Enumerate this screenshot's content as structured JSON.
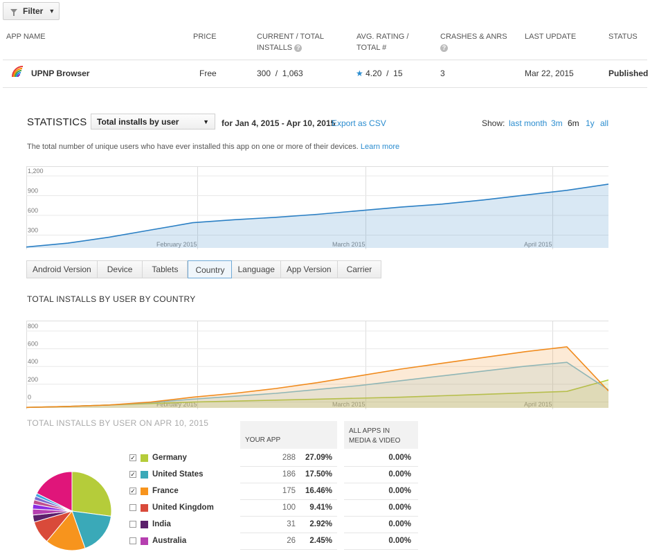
{
  "filter": {
    "label": "Filter"
  },
  "table": {
    "headers": {
      "app_name": "APP NAME",
      "price": "PRICE",
      "installs": [
        "CURRENT / TOTAL",
        "INSTALLS"
      ],
      "rating": [
        "AVG. RATING /",
        "TOTAL #"
      ],
      "crashes": "CRASHES & ANRS",
      "last_update": "LAST UPDATE",
      "status": "STATUS"
    },
    "row": {
      "app_name": "UPNP Browser",
      "price": "Free",
      "current_installs": "300",
      "total_installs": "1,063",
      "rating": "4.20",
      "rating_count": "15",
      "crashes": "3",
      "last_update": "Mar 22, 2015",
      "status": "Published"
    },
    "help_glyph": "?"
  },
  "statistics": {
    "title": "STATISTICS",
    "metric": "Total installs by user",
    "date_range": "for Jan 4, 2015 - Apr 10, 2015",
    "export": "Export as CSV",
    "show_label": "Show:",
    "ranges": [
      "last month",
      "3m",
      "6m",
      "1y",
      "all"
    ],
    "selected_range": "6m",
    "description": "The total number of unique users who have ever installed this app on one or more of their devices.",
    "learn_more": "Learn more"
  },
  "chart_data": [
    {
      "type": "area",
      "y_ticks": [
        "1,200",
        "900",
        "600",
        "300"
      ],
      "x_labels": [
        "February 2015",
        "March 2015",
        "April 2015"
      ],
      "ylim": [
        0,
        1200
      ],
      "series": [
        {
          "values": [
            15,
            80,
            180,
            300,
            420,
            470,
            510,
            560,
            620,
            680,
            730,
            800,
            880,
            960,
            1063
          ]
        }
      ],
      "colors": [
        "#2a7fc4"
      ]
    },
    {
      "type": "line",
      "y_ticks": [
        "800",
        "600",
        "400",
        "200",
        "0"
      ],
      "x_labels": [
        "February 2015",
        "March 2015",
        "April 2015"
      ],
      "ylim": [
        0,
        800
      ],
      "series": [
        {
          "values": [
            5,
            15,
            30,
            45,
            60,
            70,
            80,
            90,
            100,
            110,
            125,
            140,
            155,
            170,
            288
          ]
        },
        {
          "values": [
            5,
            15,
            30,
            55,
            90,
            120,
            150,
            190,
            230,
            280,
            330,
            380,
            430,
            470,
            186
          ]
        },
        {
          "values": [
            5,
            15,
            30,
            60,
            110,
            150,
            200,
            260,
            330,
            400,
            460,
            520,
            580,
            630,
            175
          ]
        }
      ],
      "colors": [
        "#b5cc3a",
        "#7cc0d8",
        "#f08a1c"
      ]
    }
  ],
  "tabs": [
    "Android Version",
    "Device",
    "Tablets",
    "Country",
    "Language",
    "App Version",
    "Carrier"
  ],
  "active_tab": "Country",
  "country_chart_title": "TOTAL INSTALLS BY USER BY COUNTRY",
  "country_table": {
    "title": "TOTAL INSTALLS BY USER ON APR 10, 2015",
    "your_app": "YOUR APP",
    "all_apps": [
      "ALL APPS IN",
      "MEDIA & VIDEO"
    ],
    "rows": [
      {
        "country": "Germany",
        "color": "#b5cc3a",
        "checked": true,
        "count": "288",
        "pct": "27.09%",
        "all": "0.00%"
      },
      {
        "country": "United States",
        "color": "#3aa9b8",
        "checked": true,
        "count": "186",
        "pct": "17.50%",
        "all": "0.00%"
      },
      {
        "country": "France",
        "color": "#f7941d",
        "checked": true,
        "count": "175",
        "pct": "16.46%",
        "all": "0.00%"
      },
      {
        "country": "United Kingdom",
        "color": "#d94a3a",
        "checked": false,
        "count": "100",
        "pct": "9.41%",
        "all": "0.00%"
      },
      {
        "country": "India",
        "color": "#5b1f6b",
        "checked": false,
        "count": "31",
        "pct": "2.92%",
        "all": "0.00%"
      },
      {
        "country": "Australia",
        "color": "#b63fb0",
        "checked": false,
        "count": "26",
        "pct": "2.45%",
        "all": "0.00%"
      }
    ]
  },
  "pie": {
    "values": [
      27.09,
      17.5,
      16.46,
      9.41,
      2.92,
      2.45,
      2.0,
      1.8,
      1.5,
      1.3,
      17.57
    ],
    "colors": [
      "#b5cc3a",
      "#3aa9b8",
      "#f7941d",
      "#d94a3a",
      "#5b1f6b",
      "#b63fb0",
      "#8a2be2",
      "#c05090",
      "#7a6bd0",
      "#3fa6e0",
      "#e0157a"
    ]
  }
}
